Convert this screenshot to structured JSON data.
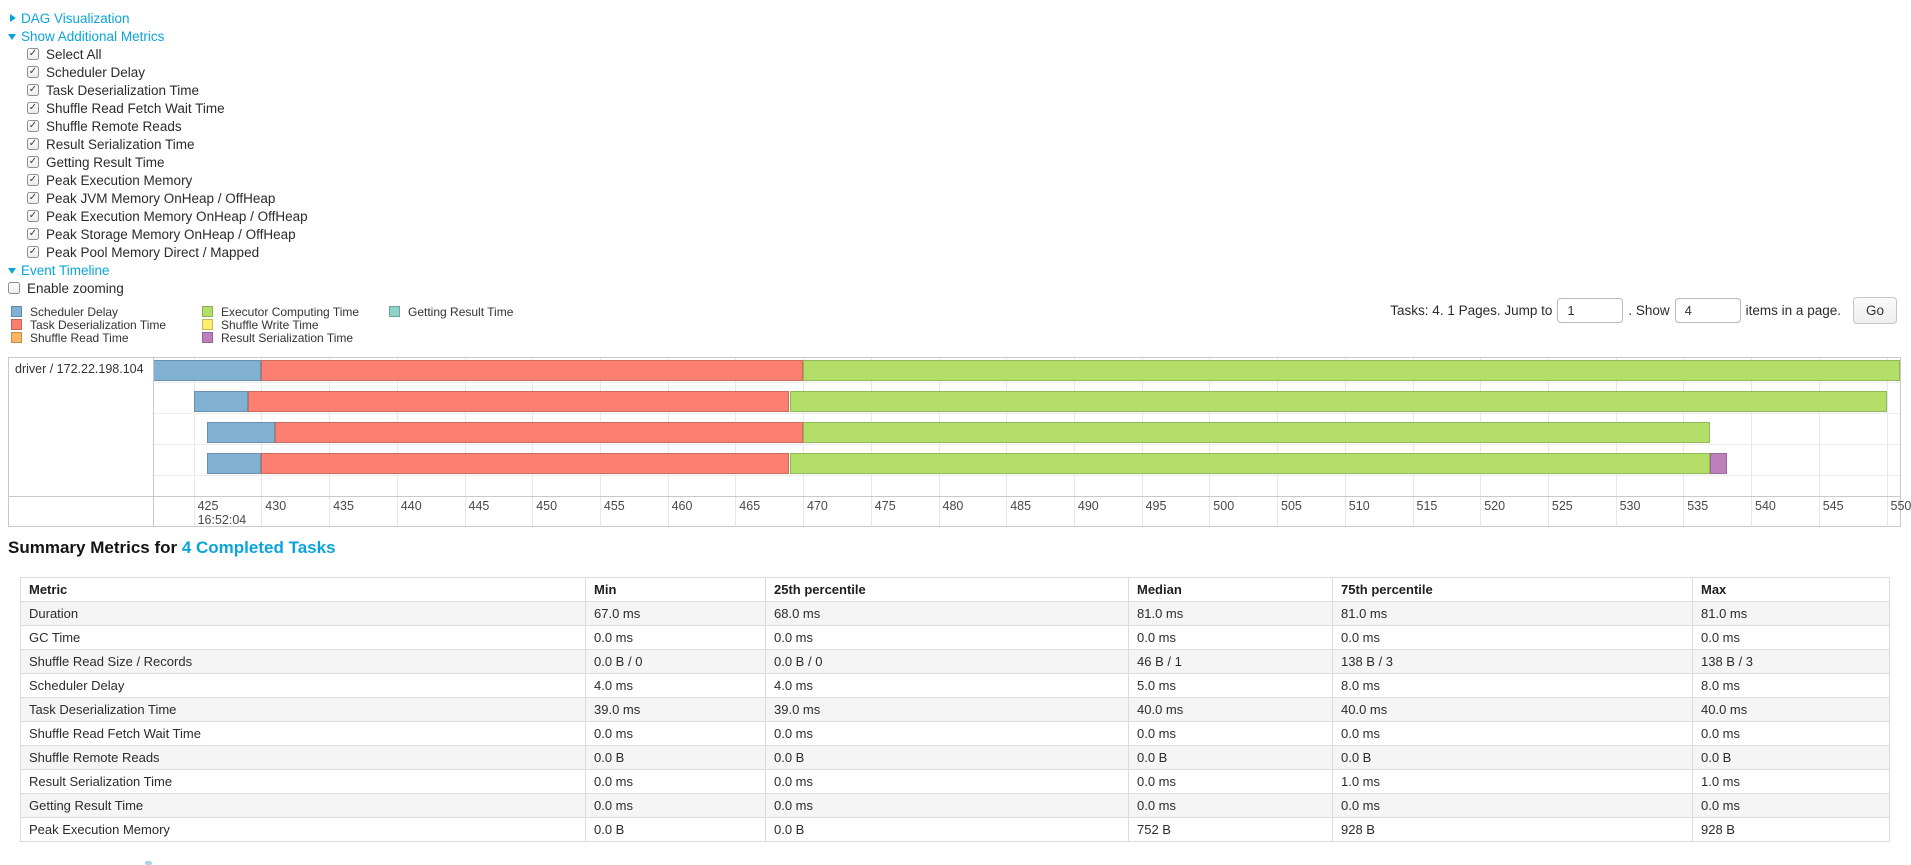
{
  "colors": {
    "link": "#0aa4dc",
    "series": {
      "scheduler_delay": "#80B1D3",
      "task_deserialization": "#FB8072",
      "shuffle_read": "#FDB462",
      "executor_computing": "#B3DE69",
      "shuffle_write": "#FFED6F",
      "result_serialization": "#BC80BD",
      "getting_result": "#8DD3C7"
    }
  },
  "controls": {
    "dag_visualization_label": "DAG Visualization",
    "show_additional_metrics_label": "Show Additional Metrics",
    "metric_checkboxes": [
      {
        "label": "Select All",
        "checked": true
      },
      {
        "label": "Scheduler Delay",
        "checked": true
      },
      {
        "label": "Task Deserialization Time",
        "checked": true
      },
      {
        "label": "Shuffle Read Fetch Wait Time",
        "checked": true
      },
      {
        "label": "Shuffle Remote Reads",
        "checked": true
      },
      {
        "label": "Result Serialization Time",
        "checked": true
      },
      {
        "label": "Getting Result Time",
        "checked": true
      },
      {
        "label": "Peak Execution Memory",
        "checked": true
      },
      {
        "label": "Peak JVM Memory OnHeap / OffHeap",
        "checked": true
      },
      {
        "label": "Peak Execution Memory OnHeap / OffHeap",
        "checked": true
      },
      {
        "label": "Peak Storage Memory OnHeap / OffHeap",
        "checked": true
      },
      {
        "label": "Peak Pool Memory Direct / Mapped",
        "checked": true
      }
    ],
    "event_timeline_label": "Event Timeline",
    "enable_zooming_label": "Enable zooming",
    "enable_zooming_checked": false
  },
  "legend": {
    "items": [
      {
        "key": "scheduler_delay",
        "label": "Scheduler Delay"
      },
      {
        "key": "task_deserialization",
        "label": "Task Deserialization Time"
      },
      {
        "key": "shuffle_read",
        "label": "Shuffle Read Time"
      },
      {
        "key": "executor_computing",
        "label": "Executor Computing Time"
      },
      {
        "key": "shuffle_write",
        "label": "Shuffle Write Time"
      },
      {
        "key": "result_serialization",
        "label": "Result Serialization Time"
      },
      {
        "key": "getting_result",
        "label": "Getting Result Time"
      }
    ]
  },
  "pagination": {
    "tasks_text": "Tasks: 4. 1 Pages. Jump to",
    "jump_value": "1",
    "show_text": ". Show",
    "show_value": "4",
    "suffix_text": "items in a page.",
    "go_label": "Go"
  },
  "chart_data": {
    "type": "timeline",
    "group_label": "driver / 172.22.198.104",
    "axis": {
      "unit": "ms",
      "window_min_ms": 422,
      "window_max_ms": 551,
      "tick_min": 425,
      "tick_max": 550,
      "tick_step": 5,
      "time_label": "16:52:04"
    },
    "tasks": [
      {
        "start_ms": 422,
        "segments": [
          {
            "key": "scheduler_delay",
            "ms": 8
          },
          {
            "key": "task_deserialization",
            "ms": 40
          },
          {
            "key": "executor_computing",
            "ms": 81
          }
        ]
      },
      {
        "start_ms": 425,
        "segments": [
          {
            "key": "scheduler_delay",
            "ms": 4
          },
          {
            "key": "task_deserialization",
            "ms": 40
          },
          {
            "key": "executor_computing",
            "ms": 81
          }
        ]
      },
      {
        "start_ms": 426,
        "segments": [
          {
            "key": "scheduler_delay",
            "ms": 5
          },
          {
            "key": "task_deserialization",
            "ms": 39
          },
          {
            "key": "executor_computing",
            "ms": 67
          }
        ]
      },
      {
        "start_ms": 426,
        "segments": [
          {
            "key": "scheduler_delay",
            "ms": 4
          },
          {
            "key": "task_deserialization",
            "ms": 39
          },
          {
            "key": "executor_computing",
            "ms": 68
          },
          {
            "key": "result_serialization",
            "ms": 1.2
          }
        ]
      }
    ]
  },
  "summary": {
    "heading_prefix": "Summary Metrics for ",
    "heading_link": "4 Completed Tasks",
    "table": {
      "headers": [
        "Metric",
        "Min",
        "25th percentile",
        "Median",
        "75th percentile",
        "Max"
      ],
      "rows": [
        [
          "Duration",
          "67.0 ms",
          "68.0 ms",
          "81.0 ms",
          "81.0 ms",
          "81.0 ms"
        ],
        [
          "GC Time",
          "0.0 ms",
          "0.0 ms",
          "0.0 ms",
          "0.0 ms",
          "0.0 ms"
        ],
        [
          "Shuffle Read Size / Records",
          "0.0 B / 0",
          "0.0 B / 0",
          "46 B / 1",
          "138 B / 3",
          "138 B / 3"
        ],
        [
          "Scheduler Delay",
          "4.0 ms",
          "4.0 ms",
          "5.0 ms",
          "8.0 ms",
          "8.0 ms"
        ],
        [
          "Task Deserialization Time",
          "39.0 ms",
          "39.0 ms",
          "40.0 ms",
          "40.0 ms",
          "40.0 ms"
        ],
        [
          "Shuffle Read Fetch Wait Time",
          "0.0 ms",
          "0.0 ms",
          "0.0 ms",
          "0.0 ms",
          "0.0 ms"
        ],
        [
          "Shuffle Remote Reads",
          "0.0 B",
          "0.0 B",
          "0.0 B",
          "0.0 B",
          "0.0 B"
        ],
        [
          "Result Serialization Time",
          "0.0 ms",
          "0.0 ms",
          "0.0 ms",
          "1.0 ms",
          "1.0 ms"
        ],
        [
          "Getting Result Time",
          "0.0 ms",
          "0.0 ms",
          "0.0 ms",
          "0.0 ms",
          "0.0 ms"
        ],
        [
          "Peak Execution Memory",
          "0.0 B",
          "0.0 B",
          "752 B",
          "928 B",
          "928 B"
        ]
      ]
    }
  }
}
